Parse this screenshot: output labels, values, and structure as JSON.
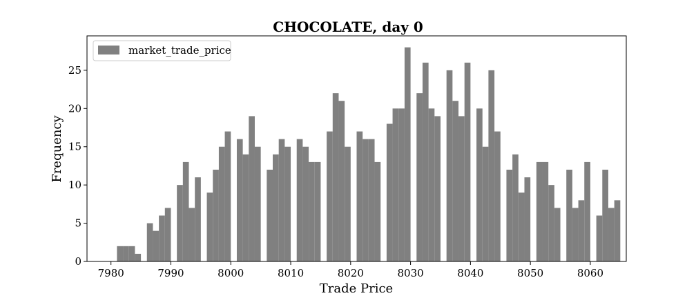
{
  "chart_data": {
    "type": "histogram",
    "title": "CHOCOLATE, day 0",
    "xlabel": "Trade Price",
    "ylabel": "Frequency",
    "xlim": [
      7976,
      8066
    ],
    "ylim": [
      0,
      29.5
    ],
    "xticks": [
      7980,
      7990,
      8000,
      8010,
      8020,
      8030,
      8040,
      8050,
      8060
    ],
    "yticks": [
      0,
      5,
      10,
      15,
      20,
      25
    ],
    "bin_width": 1,
    "legend": {
      "position": "upper-left",
      "entries": [
        "market_trade_price"
      ]
    },
    "series": [
      {
        "name": "market_trade_price",
        "color": "#808080",
        "bins": [
          {
            "x": 7981,
            "y": 2
          },
          {
            "x": 7982,
            "y": 2
          },
          {
            "x": 7983,
            "y": 2
          },
          {
            "x": 7984,
            "y": 1
          },
          {
            "x": 7985,
            "y": 0
          },
          {
            "x": 7986,
            "y": 5
          },
          {
            "x": 7987,
            "y": 4
          },
          {
            "x": 7988,
            "y": 6
          },
          {
            "x": 7989,
            "y": 7
          },
          {
            "x": 7990,
            "y": 0
          },
          {
            "x": 7991,
            "y": 10
          },
          {
            "x": 7992,
            "y": 13
          },
          {
            "x": 7993,
            "y": 7
          },
          {
            "x": 7994,
            "y": 11
          },
          {
            "x": 7995,
            "y": 0
          },
          {
            "x": 7996,
            "y": 9
          },
          {
            "x": 7997,
            "y": 12
          },
          {
            "x": 7998,
            "y": 15
          },
          {
            "x": 7999,
            "y": 17
          },
          {
            "x": 8000,
            "y": 0
          },
          {
            "x": 8001,
            "y": 16
          },
          {
            "x": 8002,
            "y": 14
          },
          {
            "x": 8003,
            "y": 19
          },
          {
            "x": 8004,
            "y": 15
          },
          {
            "x": 8005,
            "y": 0
          },
          {
            "x": 8006,
            "y": 12
          },
          {
            "x": 8007,
            "y": 14
          },
          {
            "x": 8008,
            "y": 16
          },
          {
            "x": 8009,
            "y": 15
          },
          {
            "x": 8010,
            "y": 0
          },
          {
            "x": 8011,
            "y": 16
          },
          {
            "x": 8012,
            "y": 15
          },
          {
            "x": 8013,
            "y": 13
          },
          {
            "x": 8014,
            "y": 13
          },
          {
            "x": 8015,
            "y": 0
          },
          {
            "x": 8016,
            "y": 17
          },
          {
            "x": 8017,
            "y": 22
          },
          {
            "x": 8018,
            "y": 21
          },
          {
            "x": 8019,
            "y": 15
          },
          {
            "x": 8020,
            "y": 0
          },
          {
            "x": 8021,
            "y": 17
          },
          {
            "x": 8022,
            "y": 16
          },
          {
            "x": 8023,
            "y": 16
          },
          {
            "x": 8024,
            "y": 13
          },
          {
            "x": 8025,
            "y": 0
          },
          {
            "x": 8026,
            "y": 18
          },
          {
            "x": 8027,
            "y": 20
          },
          {
            "x": 8028,
            "y": 20
          },
          {
            "x": 8029,
            "y": 28
          },
          {
            "x": 8030,
            "y": 0
          },
          {
            "x": 8031,
            "y": 22
          },
          {
            "x": 8032,
            "y": 26
          },
          {
            "x": 8033,
            "y": 20
          },
          {
            "x": 8034,
            "y": 19
          },
          {
            "x": 8035,
            "y": 0
          },
          {
            "x": 8036,
            "y": 25
          },
          {
            "x": 8037,
            "y": 21
          },
          {
            "x": 8038,
            "y": 19
          },
          {
            "x": 8039,
            "y": 26
          },
          {
            "x": 8040,
            "y": 0
          },
          {
            "x": 8041,
            "y": 20
          },
          {
            "x": 8042,
            "y": 15
          },
          {
            "x": 8043,
            "y": 25
          },
          {
            "x": 8044,
            "y": 17
          },
          {
            "x": 8045,
            "y": 0
          },
          {
            "x": 8046,
            "y": 12
          },
          {
            "x": 8047,
            "y": 14
          },
          {
            "x": 8048,
            "y": 9
          },
          {
            "x": 8049,
            "y": 11
          },
          {
            "x": 8050,
            "y": 0
          },
          {
            "x": 8051,
            "y": 13
          },
          {
            "x": 8052,
            "y": 13
          },
          {
            "x": 8053,
            "y": 10
          },
          {
            "x": 8054,
            "y": 7
          },
          {
            "x": 8055,
            "y": 0
          },
          {
            "x": 8056,
            "y": 12
          },
          {
            "x": 8057,
            "y": 7
          },
          {
            "x": 8058,
            "y": 8
          },
          {
            "x": 8059,
            "y": 13
          },
          {
            "x": 8060,
            "y": 0
          },
          {
            "x": 8061,
            "y": 6
          },
          {
            "x": 8062,
            "y": 12
          },
          {
            "x": 8063,
            "y": 7
          },
          {
            "x": 8064,
            "y": 8
          },
          {
            "x": 8065,
            "y": 0
          }
        ]
      }
    ]
  }
}
